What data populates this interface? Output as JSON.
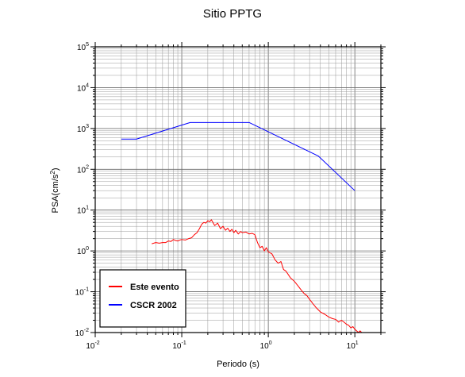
{
  "chart_data": {
    "type": "line",
    "title": "Sitio PPTG",
    "xlabel": "Periodo (s)",
    "ylabel": {
      "base": "PSA(cm/s",
      "sup": "2",
      "end": ")"
    },
    "x_scale": "log",
    "y_scale": "log",
    "xlim": [
      0.01,
      20
    ],
    "ylim": [
      0.01,
      100000
    ],
    "x_ticks": [
      {
        "base": "10",
        "exp": "-2",
        "value": 0.01
      },
      {
        "base": "10",
        "exp": "-1",
        "value": 0.1
      },
      {
        "base": "10",
        "exp": "0",
        "value": 1
      },
      {
        "base": "10",
        "exp": "1",
        "value": 10
      }
    ],
    "y_ticks": [
      {
        "base": "10",
        "exp": "-2",
        "value": 0.01
      },
      {
        "base": "10",
        "exp": "-1",
        "value": 0.1
      },
      {
        "base": "10",
        "exp": "0",
        "value": 1
      },
      {
        "base": "10",
        "exp": "1",
        "value": 10
      },
      {
        "base": "10",
        "exp": "2",
        "value": 100
      },
      {
        "base": "10",
        "exp": "3",
        "value": 1000
      },
      {
        "base": "10",
        "exp": "4",
        "value": 10000
      },
      {
        "base": "10",
        "exp": "5",
        "value": 100000
      }
    ],
    "grid": true,
    "legend_position": "bottom-left",
    "series": [
      {
        "name": "Este evento",
        "color": "#ff0000",
        "x": [
          0.045,
          0.05,
          0.055,
          0.06,
          0.065,
          0.07,
          0.075,
          0.08,
          0.085,
          0.09,
          0.095,
          0.1,
          0.11,
          0.12,
          0.13,
          0.14,
          0.15,
          0.16,
          0.17,
          0.18,
          0.19,
          0.2,
          0.21,
          0.22,
          0.24,
          0.26,
          0.28,
          0.3,
          0.32,
          0.34,
          0.36,
          0.38,
          0.4,
          0.42,
          0.45,
          0.48,
          0.5,
          0.55,
          0.6,
          0.65,
          0.7,
          0.75,
          0.8,
          0.85,
          0.9,
          0.95,
          1.0,
          1.1,
          1.2,
          1.3,
          1.4,
          1.5,
          1.6,
          1.8,
          2.0,
          2.2,
          2.4,
          2.6,
          2.8,
          3.0,
          3.3,
          3.6,
          4.0,
          4.5,
          5.0,
          5.5,
          6.0,
          6.5,
          7.0,
          7.5,
          8.0,
          8.5,
          9.0,
          9.5,
          10.0,
          10.5,
          11.0,
          11.5,
          12.0
        ],
        "y": [
          1.5,
          1.6,
          1.55,
          1.6,
          1.6,
          1.75,
          1.7,
          1.9,
          1.8,
          1.75,
          1.85,
          1.9,
          1.85,
          2.0,
          2.1,
          2.5,
          2.8,
          3.5,
          4.5,
          5.0,
          4.8,
          5.5,
          5.2,
          5.8,
          4.2,
          4.8,
          3.5,
          4.0,
          3.2,
          3.6,
          3.0,
          3.4,
          2.8,
          3.2,
          2.6,
          3.0,
          2.8,
          2.9,
          2.6,
          2.7,
          2.5,
          1.6,
          1.2,
          1.3,
          1.0,
          1.2,
          0.95,
          0.85,
          0.6,
          0.5,
          0.55,
          0.35,
          0.32,
          0.22,
          0.18,
          0.14,
          0.11,
          0.09,
          0.08,
          0.065,
          0.05,
          0.04,
          0.032,
          0.028,
          0.024,
          0.022,
          0.021,
          0.018,
          0.02,
          0.018,
          0.016,
          0.015,
          0.013,
          0.014,
          0.012,
          0.011,
          0.01,
          0.011,
          0.01
        ]
      },
      {
        "name": "CSCR 2002",
        "color": "#0000ff",
        "x": [
          0.02,
          0.03,
          0.125,
          0.6,
          3.8,
          10
        ],
        "y": [
          550,
          550,
          1400,
          1400,
          210,
          30
        ]
      }
    ]
  }
}
